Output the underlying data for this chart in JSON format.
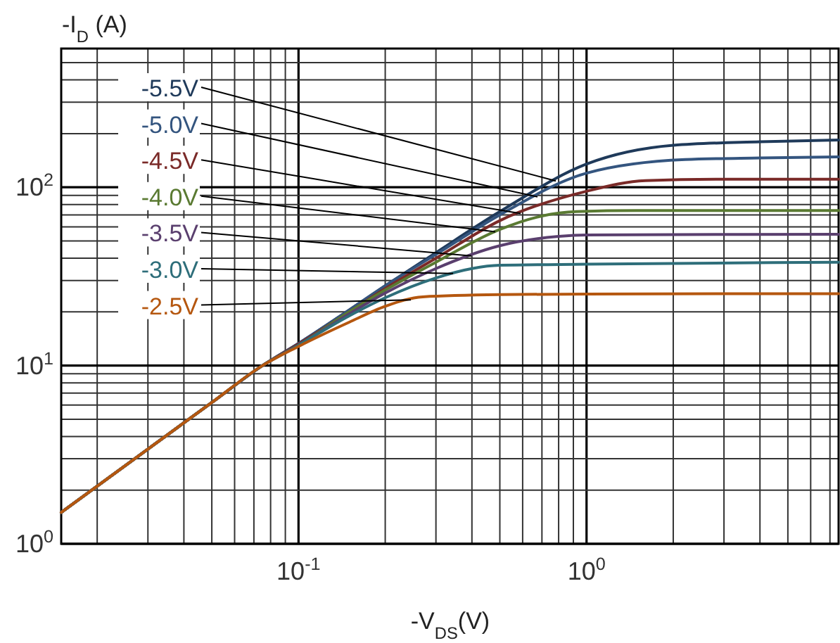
{
  "chart_data": {
    "type": "line",
    "xlabel": "-V$_{DS}$(V)",
    "ylabel": "-I$_{D}$ (A)",
    "log": "xy",
    "grid": true,
    "xlim": [
      0.015,
      7.5
    ],
    "ylim": [
      1,
      600
    ],
    "xticks": [
      {
        "value": 0.02,
        "label": null
      },
      {
        "value": 0.03,
        "label": null
      },
      {
        "value": 0.04,
        "label": null
      },
      {
        "value": 0.05,
        "label": null
      },
      {
        "value": 0.06,
        "label": null
      },
      {
        "value": 0.07,
        "label": null
      },
      {
        "value": 0.08,
        "label": null
      },
      {
        "value": 0.09,
        "label": null
      },
      {
        "value": 0.1,
        "label": "10$^{-1}$"
      },
      {
        "value": 0.2,
        "label": null
      },
      {
        "value": 0.3,
        "label": null
      },
      {
        "value": 0.4,
        "label": null
      },
      {
        "value": 0.5,
        "label": null
      },
      {
        "value": 0.6,
        "label": null
      },
      {
        "value": 0.7,
        "label": null
      },
      {
        "value": 0.8,
        "label": null
      },
      {
        "value": 0.9,
        "label": null
      },
      {
        "value": 1,
        "label": "10$^{0}$"
      },
      {
        "value": 2,
        "label": null
      },
      {
        "value": 3,
        "label": null
      },
      {
        "value": 4,
        "label": null
      },
      {
        "value": 5,
        "label": null
      },
      {
        "value": 6,
        "label": null
      },
      {
        "value": 7,
        "label": null
      }
    ],
    "yticks": [
      {
        "value": 1,
        "label": "10$^{0}$"
      },
      {
        "value": 2,
        "label": null
      },
      {
        "value": 3,
        "label": null
      },
      {
        "value": 4,
        "label": null
      },
      {
        "value": 5,
        "label": null
      },
      {
        "value": 6,
        "label": null
      },
      {
        "value": 7,
        "label": null
      },
      {
        "value": 8,
        "label": null
      },
      {
        "value": 9,
        "label": null
      },
      {
        "value": 10,
        "label": "10$^{1}$"
      },
      {
        "value": 20,
        "label": null
      },
      {
        "value": 30,
        "label": null
      },
      {
        "value": 40,
        "label": null
      },
      {
        "value": 50,
        "label": null
      },
      {
        "value": 60,
        "label": null
      },
      {
        "value": 70,
        "label": null
      },
      {
        "value": 80,
        "label": null
      },
      {
        "value": 90,
        "label": null
      },
      {
        "value": 100,
        "label": "10$^{2}$"
      },
      {
        "value": 200,
        "label": null
      },
      {
        "value": 300,
        "label": null
      },
      {
        "value": 400,
        "label": null
      },
      {
        "value": 500,
        "label": null
      },
      {
        "value": 600,
        "label": null
      }
    ],
    "series": [
      {
        "name": "-5.5V",
        "color": "#1f3a5a",
        "x": [
          0.015,
          0.03,
          0.05,
          0.075,
          0.1,
          0.15,
          0.2,
          0.3,
          0.5,
          1,
          2,
          4,
          7.5
        ],
        "values": [
          1.5,
          3.4,
          6.2,
          10,
          13.3,
          20.5,
          28,
          43,
          73,
          135,
          172,
          180,
          184
        ]
      },
      {
        "name": "-5.0V",
        "color": "#34557f",
        "x": [
          0.015,
          0.03,
          0.05,
          0.075,
          0.1,
          0.15,
          0.2,
          0.3,
          0.5,
          1,
          2.2,
          4,
          7.5
        ],
        "values": [
          1.5,
          3.4,
          6.2,
          10,
          13.3,
          20.5,
          28,
          42,
          70,
          120,
          143,
          146,
          148
        ]
      },
      {
        "name": "-4.5V",
        "color": "#7a2a28",
        "x": [
          0.015,
          0.03,
          0.05,
          0.075,
          0.1,
          0.15,
          0.2,
          0.3,
          0.5,
          1,
          1.6,
          3,
          7.5
        ],
        "values": [
          1.5,
          3.4,
          6.2,
          10,
          13.2,
          20,
          27,
          40,
          65,
          95,
          109,
          111,
          111
        ]
      },
      {
        "name": "-4.0V",
        "color": "#5a7a32",
        "x": [
          0.015,
          0.03,
          0.05,
          0.075,
          0.1,
          0.15,
          0.2,
          0.3,
          0.5,
          0.7,
          0.92,
          1.5,
          7.5
        ],
        "values": [
          1.5,
          3.4,
          6.2,
          10,
          13,
          20,
          26.5,
          38,
          58,
          69,
          73,
          74,
          74
        ]
      },
      {
        "name": "-3.5V",
        "color": "#5a3f6e",
        "x": [
          0.015,
          0.03,
          0.05,
          0.075,
          0.1,
          0.15,
          0.2,
          0.3,
          0.5,
          0.8,
          1,
          7.5
        ],
        "values": [
          1.5,
          3.4,
          6.2,
          10,
          13,
          19.5,
          25.5,
          35,
          47,
          53,
          54,
          54.5
        ]
      },
      {
        "name": "-3.0V",
        "color": "#2e6e7a",
        "x": [
          0.015,
          0.03,
          0.05,
          0.075,
          0.1,
          0.15,
          0.2,
          0.3,
          0.4,
          0.5,
          1,
          7.5
        ],
        "values": [
          1.5,
          3.4,
          6.2,
          10,
          13,
          19,
          24,
          31,
          35,
          36.5,
          37,
          38
        ]
      },
      {
        "name": "-2.5V",
        "color": "#b5570f",
        "x": [
          0.015,
          0.03,
          0.05,
          0.075,
          0.1,
          0.15,
          0.2,
          0.27,
          0.5,
          1,
          7.5
        ],
        "values": [
          1.5,
          3.4,
          6.2,
          10,
          12.8,
          17.5,
          21.5,
          24.3,
          25,
          25.2,
          25.3
        ]
      }
    ]
  }
}
